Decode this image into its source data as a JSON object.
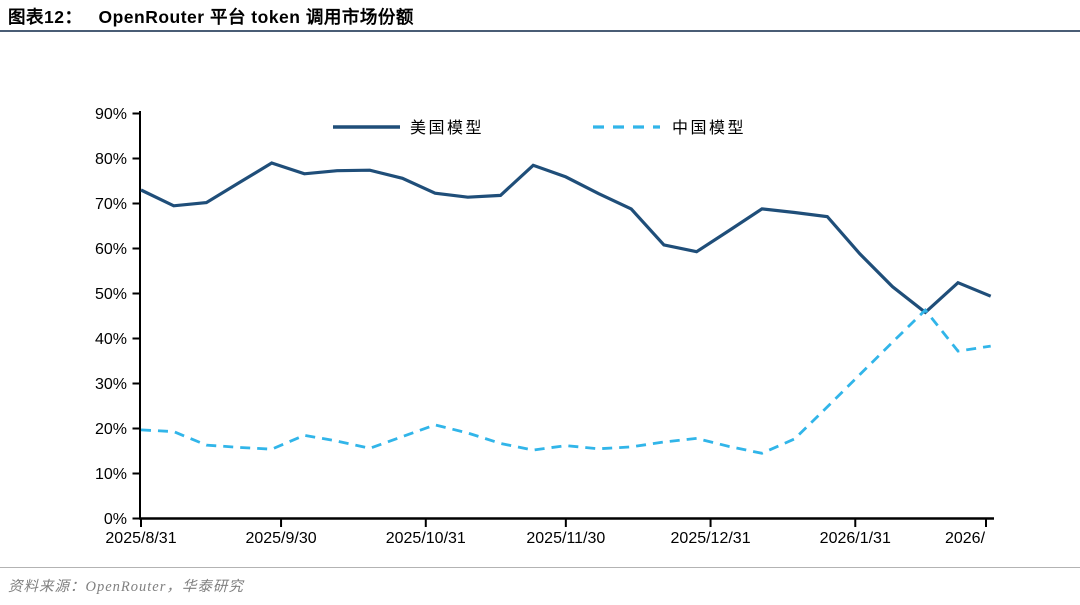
{
  "header": {
    "figure_label": "图表12：",
    "title": "OpenRouter 平台 token 调用市场份额"
  },
  "footer": {
    "source": "资料来源：OpenRouter，华泰研究"
  },
  "colors": {
    "us_line": "#1f4e79",
    "cn_line": "#31b5e9",
    "axis": "#000000",
    "tick_label": "#000000",
    "title_rule": "#4a5d75",
    "footer_rule": "#b3b3b3",
    "footer_text": "#808080"
  },
  "chart_data": {
    "type": "line",
    "title": "OpenRouter 平台 token 调用市场份额",
    "xlabel": "",
    "ylabel": "",
    "ylim": [
      0,
      90
    ],
    "ytick_step": 10,
    "ytick_labels": [
      "0%",
      "10%",
      "20%",
      "30%",
      "40%",
      "50%",
      "60%",
      "70%",
      "80%",
      "90%"
    ],
    "grid": false,
    "legend_position": "top-center",
    "x": [
      "2025/8/31",
      "2025/9/7",
      "2025/9/14",
      "2025/9/21",
      "2025/9/28",
      "2025/10/5",
      "2025/10/12",
      "2025/10/19",
      "2025/10/26",
      "2025/11/2",
      "2025/11/9",
      "2025/11/16",
      "2025/11/23",
      "2025/11/30",
      "2025/12/7",
      "2025/12/14",
      "2025/12/21",
      "2025/12/28",
      "2026/1/4",
      "2026/1/11",
      "2026/1/18",
      "2026/1/25",
      "2026/2/1",
      "2026/2/8",
      "2026/2/15",
      "2026/2/22",
      "2026/3/1"
    ],
    "series": [
      {
        "name": "美国模型",
        "style": "solid",
        "color": "#1f4e79",
        "values": [
          73.0,
          69.5,
          70.2,
          74.6,
          79.0,
          76.6,
          77.3,
          77.4,
          75.6,
          72.3,
          71.4,
          71.8,
          78.5,
          75.9,
          72.2,
          68.8,
          60.8,
          59.3,
          64.0,
          68.8,
          68.0,
          67.1,
          58.8,
          51.5,
          45.8,
          52.4,
          49.4
        ]
      },
      {
        "name": "中国模型",
        "style": "dashed",
        "color": "#31b5e9",
        "values": [
          19.7,
          19.3,
          16.3,
          15.8,
          15.4,
          18.5,
          17.2,
          15.6,
          18.2,
          20.8,
          19.0,
          16.7,
          15.2,
          16.2,
          15.5,
          15.9,
          17.0,
          17.8,
          16.0,
          14.5,
          17.7,
          24.8,
          32.0,
          39.2,
          46.3,
          37.2,
          38.3
        ]
      }
    ],
    "xticks": [
      {
        "label": "2025/8/31",
        "day": 0
      },
      {
        "label": "2025/9/30",
        "day": 30
      },
      {
        "label": "2025/10/31",
        "day": 61
      },
      {
        "label": "2025/11/30",
        "day": 91
      },
      {
        "label": "2025/12/31",
        "day": 122
      },
      {
        "label": "2026/1/31",
        "day": 153
      },
      {
        "label": "2026/",
        "day": 181,
        "truncated": true
      }
    ]
  }
}
